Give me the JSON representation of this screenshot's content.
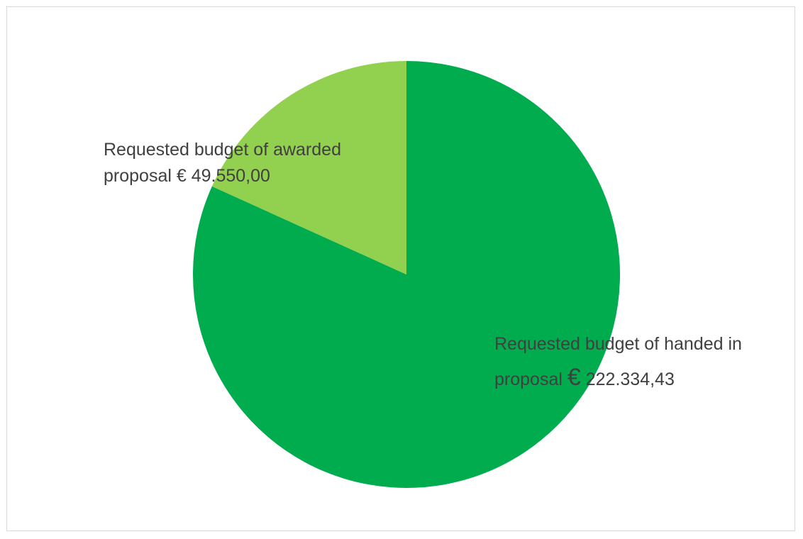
{
  "chart_data": {
    "type": "pie",
    "title": "",
    "slices": [
      {
        "label_line1": "Requested budget of handed in",
        "label_line2_prefix": "proposal ",
        "label_euro": "€",
        "label_value": " 222.334,43",
        "value": 222334.43,
        "color": "#00ac4e"
      },
      {
        "label_line1": "Requested budget of awarded",
        "label_line2_prefix": "proposal ",
        "label_euro": "€",
        "label_value": " 49.550,00",
        "value": 49550.0,
        "color": "#92d050"
      }
    ],
    "start_angle_deg": 0,
    "direction": "clockwise",
    "legend": "none",
    "border_color": "#d9d9d9"
  }
}
